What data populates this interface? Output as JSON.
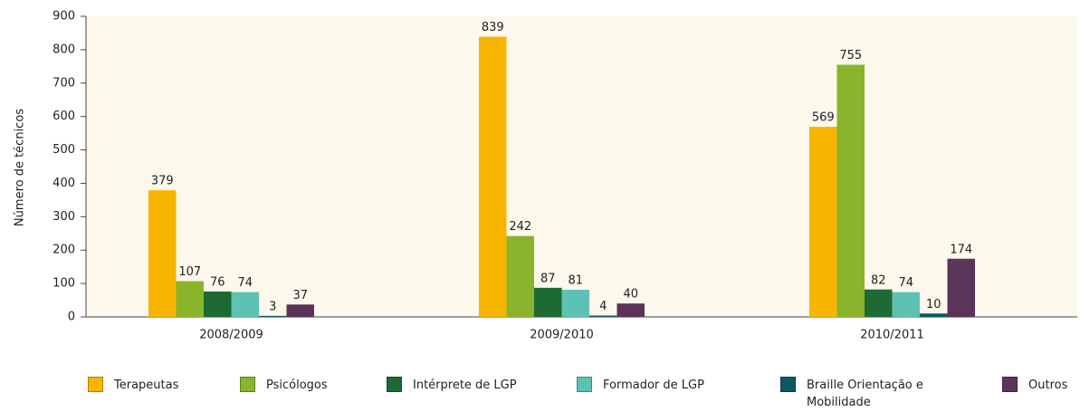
{
  "chart_data": {
    "type": "bar",
    "y_label": "Número de técnicos",
    "categories": [
      "2008/2009",
      "2009/2010",
      "2010/2011"
    ],
    "series": [
      {
        "name": "Terapeutas",
        "color": "#f7b500",
        "values": [
          379,
          839,
          569
        ]
      },
      {
        "name": "Psicólogos",
        "color": "#8ab42c",
        "values": [
          107,
          242,
          755
        ]
      },
      {
        "name": "Intérprete de LGP",
        "color": "#1e6a33",
        "values": [
          76,
          87,
          82
        ]
      },
      {
        "name": "Formador de LGP",
        "color": "#5cc2b3",
        "values": [
          74,
          81,
          74
        ]
      },
      {
        "name": "Braille Orientação e Mobilidade",
        "color": "#0e5862",
        "values": [
          3,
          4,
          10
        ]
      },
      {
        "name": "Outros",
        "color": "#5b3459",
        "values": [
          37,
          40,
          174
        ]
      }
    ],
    "ylim": [
      0,
      900
    ],
    "yticks": [
      0,
      100,
      200,
      300,
      400,
      500,
      600,
      700,
      800,
      900
    ],
    "grid": false,
    "legend": "bottom"
  }
}
